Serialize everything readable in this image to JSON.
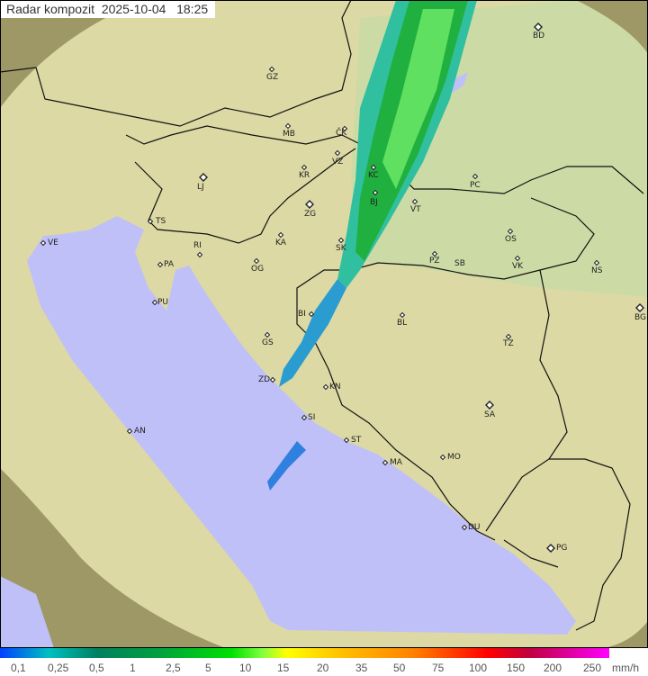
{
  "title": "Radar kompozit  2025-10-04   18:25",
  "colors": {
    "sea": "#c0c0f8",
    "land_covered": "#dcd9a4",
    "land_east": "#c2dca6",
    "land_uncovered": "#9e9866",
    "border": "#111111",
    "echo_light": "#30c0a0",
    "echo_mid": "#20b040",
    "echo_strong": "#50e050",
    "echo_weak": "#2080ff"
  },
  "cities": [
    {
      "code": "GZ",
      "marker": "dot"
    },
    {
      "code": "BD",
      "marker": "diamond"
    },
    {
      "code": "MB",
      "marker": "dot"
    },
    {
      "code": "ČK",
      "marker": "dot"
    },
    {
      "code": "KR",
      "marker": "dot"
    },
    {
      "code": "VZ",
      "marker": "dot"
    },
    {
      "code": "KC",
      "marker": "dot"
    },
    {
      "code": "PC",
      "marker": "dot"
    },
    {
      "code": "LJ",
      "marker": "diamond"
    },
    {
      "code": "ZG",
      "marker": "diamond"
    },
    {
      "code": "BJ",
      "marker": "dot"
    },
    {
      "code": "VT",
      "marker": "dot"
    },
    {
      "code": "TS",
      "marker": "dot"
    },
    {
      "code": "VE",
      "marker": "dot"
    },
    {
      "code": "RI",
      "marker": "dot"
    },
    {
      "code": "KA",
      "marker": "dot"
    },
    {
      "code": "SK",
      "marker": "dot"
    },
    {
      "code": "OS",
      "marker": "dot"
    },
    {
      "code": "PZ",
      "marker": "dot"
    },
    {
      "code": "SB",
      "marker": "none"
    },
    {
      "code": "VK",
      "marker": "dot"
    },
    {
      "code": "NS",
      "marker": "dot"
    },
    {
      "code": "PA",
      "marker": "dot"
    },
    {
      "code": "OG",
      "marker": "dot"
    },
    {
      "code": "PU",
      "marker": "dot"
    },
    {
      "code": "BI",
      "marker": "dot"
    },
    {
      "code": "BL",
      "marker": "dot"
    },
    {
      "code": "BG",
      "marker": "diamond"
    },
    {
      "code": "GS",
      "marker": "dot"
    },
    {
      "code": "TZ",
      "marker": "dot"
    },
    {
      "code": "ZD",
      "marker": "dot"
    },
    {
      "code": "KN",
      "marker": "dot"
    },
    {
      "code": "SI",
      "marker": "dot"
    },
    {
      "code": "SA",
      "marker": "diamond"
    },
    {
      "code": "AN",
      "marker": "dot"
    },
    {
      "code": "ST",
      "marker": "dot"
    },
    {
      "code": "MO",
      "marker": "dot"
    },
    {
      "code": "MA",
      "marker": "dot"
    },
    {
      "code": "DU",
      "marker": "dot"
    },
    {
      "code": "PG",
      "marker": "diamond"
    }
  ],
  "legend": {
    "unit": "mm/h",
    "ticks": [
      "0,1",
      "0,25",
      "0,5",
      "1",
      "2,5",
      "5",
      "10",
      "15",
      "20",
      "35",
      "50",
      "75",
      "100",
      "150",
      "200",
      "250"
    ]
  }
}
